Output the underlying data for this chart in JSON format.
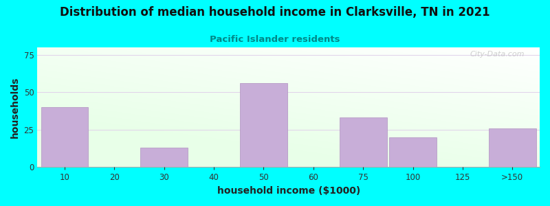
{
  "title": "Distribution of median household income in Clarksville, TN in 2021",
  "subtitle": "Pacific Islander residents",
  "xlabel": "household income ($1000)",
  "ylabel": "households",
  "background_color": "#00FFFF",
  "bar_color": "#c8aed8",
  "bar_edge_color": "#b090c0",
  "grid_color": "#e0d0ea",
  "categories": [
    "10",
    "20",
    "30",
    "40",
    "50",
    "60",
    "75",
    "100",
    "125",
    ">150"
  ],
  "bar_values": [
    40,
    0,
    13,
    0,
    56,
    0,
    33,
    20,
    0,
    26
  ],
  "bar_centers": [
    0,
    1,
    2,
    3,
    4,
    5,
    6,
    7,
    8,
    9
  ],
  "ylim": [
    0,
    80
  ],
  "yticks": [
    0,
    25,
    50,
    75
  ],
  "title_color": "#111111",
  "subtitle_color": "#008888",
  "axis_label_color": "#222222",
  "tick_color": "#333333",
  "watermark": "City-Data.com",
  "bar_width": 0.95
}
